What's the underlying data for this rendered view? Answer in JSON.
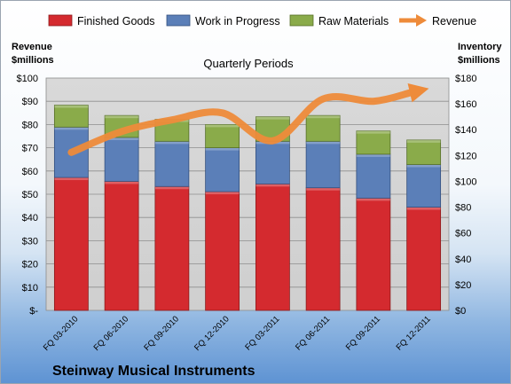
{
  "company": "Steinway Musical Instruments",
  "chart_data": {
    "type": "bar",
    "subtype": "stacked bar with line overlay (dual axis)",
    "title": "Quarterly Periods",
    "categories": [
      "FQ 03-2010",
      "FQ 06-2010",
      "FQ 09-2010",
      "FQ 12-2010",
      "FQ 03-2011",
      "FQ 06-2011",
      "FQ 09-2011",
      "FQ 12-2011"
    ],
    "left_axis": {
      "label_line1": "Revenue",
      "label_line2": "$millions",
      "ylim": [
        0,
        100
      ],
      "ticks": [
        "$-",
        "$10",
        "$20",
        "$30",
        "$40",
        "$50",
        "$60",
        "$70",
        "$80",
        "$90",
        "$100"
      ]
    },
    "right_axis": {
      "label_line1": "Inventory",
      "label_line2": "$millions",
      "ylim": [
        0,
        180
      ],
      "ticks": [
        "$0",
        "$20",
        "$40",
        "$60",
        "$80",
        "$100",
        "$120",
        "$140",
        "$160",
        "$180"
      ]
    },
    "grid": true,
    "legend_position": "top",
    "series": [
      {
        "name": "Finished Goods",
        "axis": "right",
        "color": "#d42a2f",
        "values": [
          103,
          100,
          96,
          92,
          98,
          95,
          87,
          80
        ]
      },
      {
        "name": "Work in Progress",
        "axis": "right",
        "color": "#5b7fb8",
        "values": [
          39,
          34,
          35,
          34,
          33,
          36,
          34,
          33
        ]
      },
      {
        "name": "Raw Materials",
        "axis": "right",
        "color": "#8aab4a",
        "values": [
          17,
          17,
          17,
          18,
          19,
          20,
          18,
          19
        ]
      },
      {
        "name": "Revenue",
        "axis": "left",
        "color": "#ee8b3a",
        "type": "line",
        "values": [
          68,
          77,
          82,
          85,
          73,
          91,
          90,
          95
        ]
      }
    ]
  }
}
